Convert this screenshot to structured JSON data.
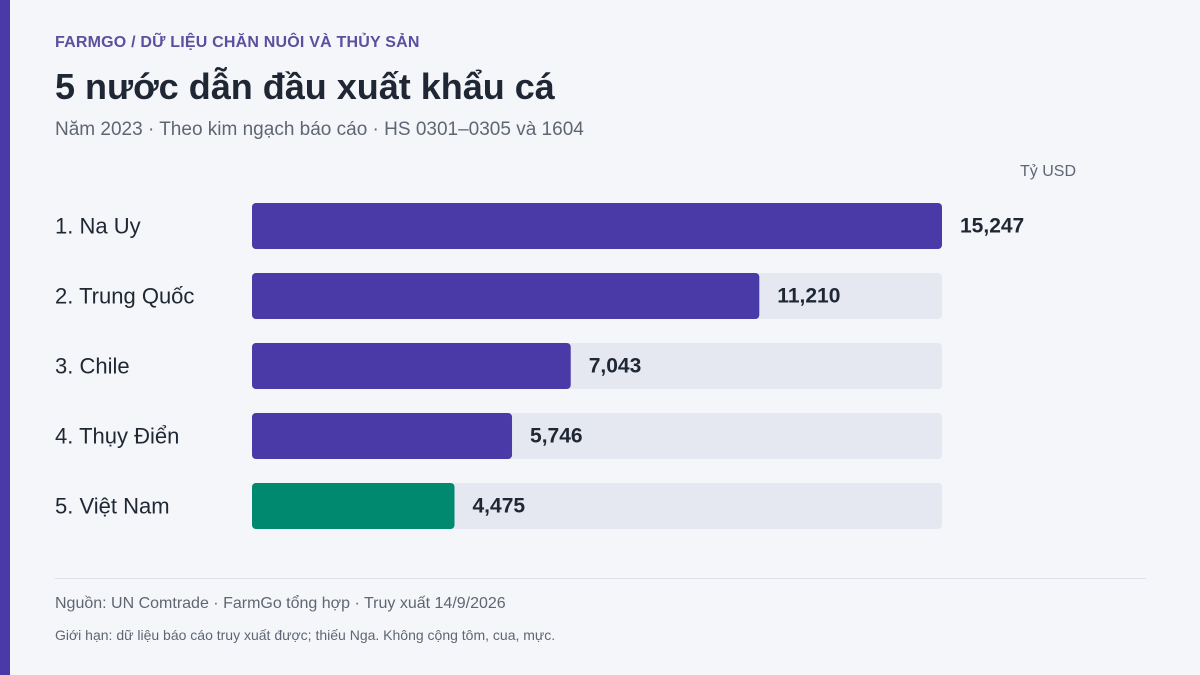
{
  "header": {
    "kicker": "FARMGO / DỮ LIỆU CHĂN NUÔI VÀ THỦY SẢN",
    "title": "5 nước dẫn đầu xuất khẩu cá",
    "subtitle": "Năm 2023 · Theo kim ngạch báo cáo · HS 0301–0305 và 1604"
  },
  "chart_data": {
    "type": "bar",
    "orientation": "horizontal",
    "unit_label": "Tỷ USD",
    "categories": [
      "1. Na Uy",
      "2. Trung Quốc",
      "3. Chile",
      "4. Thụy Điển",
      "5. Việt Nam"
    ],
    "values": [
      15.247,
      11.21,
      7.043,
      5.746,
      4.475
    ],
    "value_labels": [
      "15,247",
      "11,210",
      "7,043",
      "5,746",
      "4,475"
    ],
    "highlight_index": 4,
    "xlim": [
      0,
      15.247
    ],
    "colors": {
      "bar": "#4a3aa8",
      "highlight": "#00896f",
      "track": "#e6e8f1",
      "label": "#1e2733",
      "value": "#1e2733"
    }
  },
  "footer": {
    "source": "Nguồn: UN Comtrade · FarmGo tổng hợp · Truy xuất 14/9/2026",
    "note": "Giới hạn: dữ liệu báo cáo truy xuất được; thiếu Nga. Không cộng tôm, cua, mực."
  }
}
